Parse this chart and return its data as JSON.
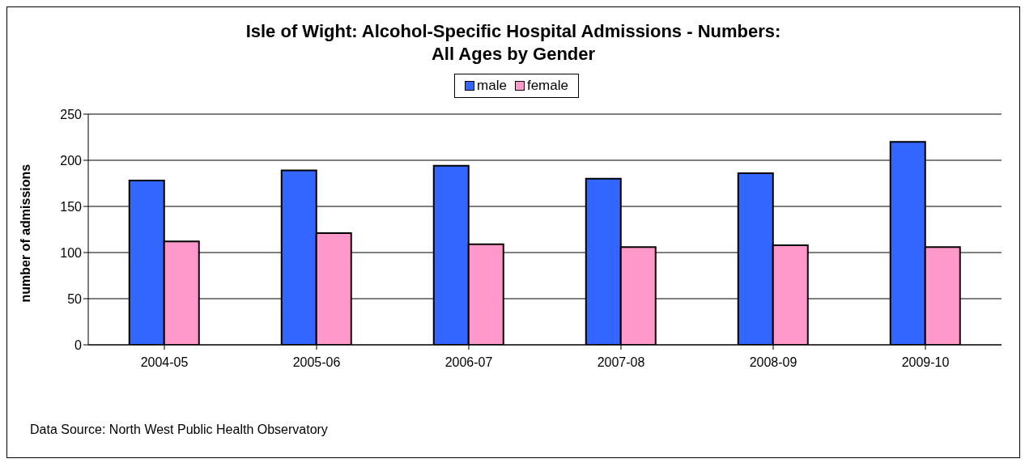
{
  "chart_data": {
    "type": "bar",
    "title": "Isle of Wight: Alcohol-Specific Hospital Admissions - Numbers:\nAll Ages by Gender",
    "ylabel": "number of admissions",
    "categories": [
      "2004-05",
      "2005-06",
      "2006-07",
      "2007-08",
      "2008-09",
      "2009-10"
    ],
    "series": [
      {
        "name": "male",
        "color": "#3366ff",
        "values": [
          178,
          189,
          194,
          180,
          186,
          220
        ]
      },
      {
        "name": "female",
        "color": "#ff99cc",
        "values": [
          112,
          121,
          109,
          106,
          108,
          106
        ]
      }
    ],
    "ylim": [
      0,
      250
    ],
    "yticks": [
      0,
      50,
      100,
      150,
      200,
      250
    ],
    "grid": "y",
    "legend": "top",
    "annotations": [
      "Data Source: North West Public Health Observatory"
    ]
  }
}
